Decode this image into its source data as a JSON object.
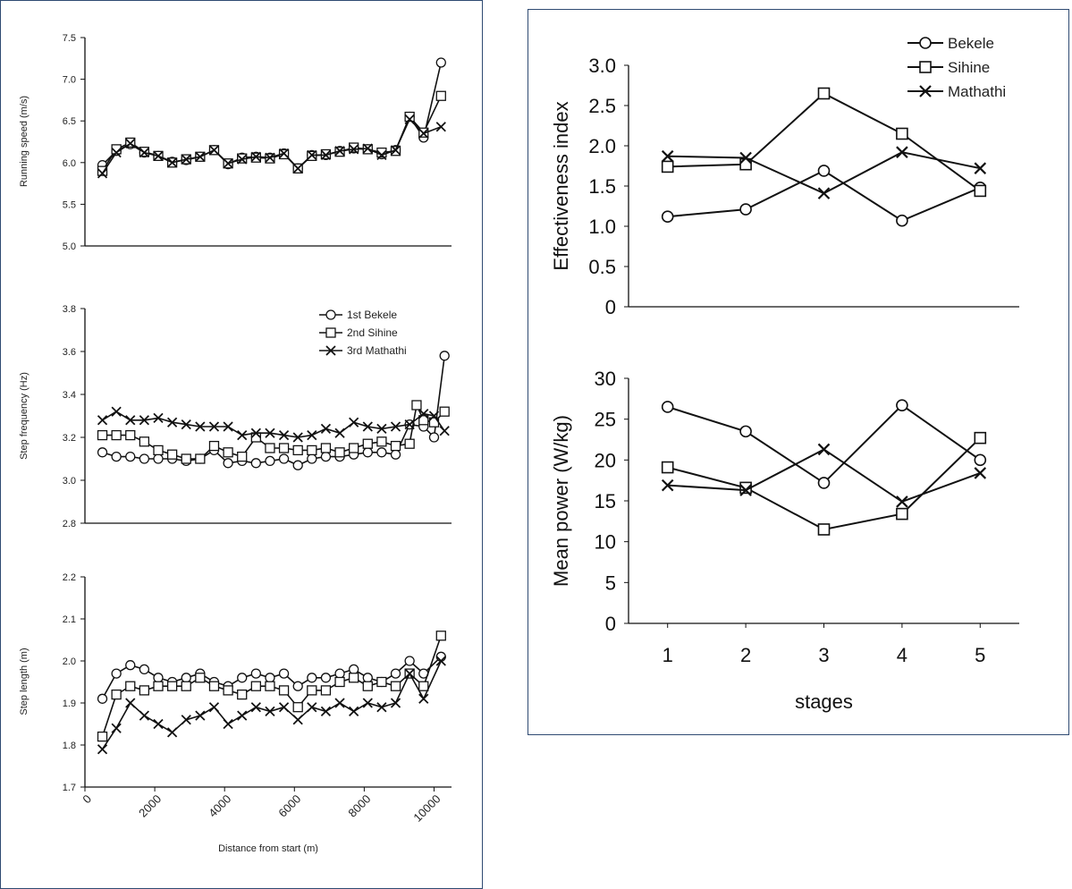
{
  "chart_data": [
    {
      "id": "speed",
      "type": "line",
      "ylabel": "Running speed (m/s)",
      "ylim": [
        5.0,
        7.5
      ],
      "yticks": [
        "5.0",
        "5.5",
        "6.0",
        "6.5",
        "7.0",
        "7.5"
      ],
      "xlim": [
        0,
        10500
      ],
      "series": [
        {
          "name": "1st Bekele",
          "marker": "circle",
          "x": [
            500,
            900,
            1300,
            1700,
            2100,
            2500,
            2900,
            3300,
            3700,
            4100,
            4500,
            4900,
            5300,
            5700,
            6100,
            6500,
            6900,
            7300,
            7700,
            8100,
            8500,
            8900,
            9300,
            9700,
            10200
          ],
          "y": [
            5.97,
            6.14,
            6.22,
            6.12,
            6.08,
            6.01,
            6.03,
            6.07,
            6.15,
            5.98,
            6.06,
            6.07,
            6.06,
            6.11,
            5.93,
            6.09,
            6.09,
            6.14,
            6.17,
            6.16,
            6.1,
            6.15,
            6.55,
            6.3,
            7.2
          ]
        },
        {
          "name": "2nd Sihine",
          "marker": "square",
          "x": [
            500,
            900,
            1300,
            1700,
            2100,
            2500,
            2900,
            3300,
            3700,
            4100,
            4500,
            4900,
            5300,
            5700,
            6100,
            6500,
            6900,
            7300,
            7700,
            8100,
            8500,
            8900,
            9300,
            9700,
            10200
          ],
          "y": [
            5.9,
            6.16,
            6.24,
            6.13,
            6.08,
            6.0,
            6.04,
            6.07,
            6.15,
            5.99,
            6.05,
            6.06,
            6.05,
            6.1,
            5.93,
            6.08,
            6.1,
            6.13,
            6.18,
            6.16,
            6.12,
            6.14,
            6.55,
            6.36,
            6.8
          ]
        },
        {
          "name": "3rd Mathathi",
          "marker": "x",
          "x": [
            500,
            900,
            1300,
            1700,
            2100,
            2500,
            2900,
            3300,
            3700,
            4100,
            4500,
            4900,
            5300,
            5700,
            6100,
            6500,
            6900,
            7300,
            7700,
            8100,
            8500,
            8900,
            9300,
            9700,
            10200
          ],
          "y": [
            5.87,
            6.12,
            6.23,
            6.12,
            6.08,
            6.0,
            6.04,
            6.07,
            6.15,
            5.99,
            6.04,
            6.07,
            6.06,
            6.11,
            5.93,
            6.09,
            6.09,
            6.14,
            6.16,
            6.17,
            6.09,
            6.15,
            6.52,
            6.35,
            6.43
          ]
        }
      ]
    },
    {
      "id": "frequency",
      "type": "line",
      "ylabel": "Step frequency (Hz)",
      "ylim": [
        2.8,
        3.8
      ],
      "yticks": [
        "2.8",
        "3.0",
        "3.2",
        "3.4",
        "3.6",
        "3.8"
      ],
      "xlim": [
        0,
        10500
      ],
      "legend": [
        "1st Bekele",
        "2nd Sihine",
        "3rd Mathathi"
      ],
      "legend_position": "top-right",
      "series": [
        {
          "name": "1st Bekele",
          "marker": "circle",
          "x": [
            500,
            900,
            1300,
            1700,
            2100,
            2500,
            2900,
            3300,
            3700,
            4100,
            4500,
            4900,
            5300,
            5700,
            6100,
            6500,
            6900,
            7300,
            7700,
            8100,
            8500,
            8900,
            9300,
            9700,
            10000,
            10300
          ],
          "y": [
            3.13,
            3.11,
            3.11,
            3.1,
            3.1,
            3.1,
            3.09,
            3.1,
            3.14,
            3.08,
            3.09,
            3.08,
            3.09,
            3.1,
            3.07,
            3.1,
            3.11,
            3.11,
            3.12,
            3.13,
            3.13,
            3.12,
            3.26,
            3.25,
            3.2,
            3.58
          ]
        },
        {
          "name": "2nd Sihine",
          "marker": "square",
          "x": [
            500,
            900,
            1300,
            1700,
            2100,
            2500,
            2900,
            3300,
            3700,
            4100,
            4500,
            4900,
            5300,
            5700,
            6100,
            6500,
            6900,
            7300,
            7700,
            8100,
            8500,
            8900,
            9300,
            9500,
            9700,
            10000,
            10300
          ],
          "y": [
            3.21,
            3.21,
            3.21,
            3.18,
            3.14,
            3.12,
            3.1,
            3.1,
            3.16,
            3.13,
            3.11,
            3.2,
            3.15,
            3.15,
            3.14,
            3.14,
            3.15,
            3.13,
            3.15,
            3.17,
            3.18,
            3.16,
            3.17,
            3.35,
            3.28,
            3.27,
            3.32
          ]
        },
        {
          "name": "3rd Mathathi",
          "marker": "x",
          "x": [
            500,
            900,
            1300,
            1700,
            2100,
            2500,
            2900,
            3300,
            3700,
            4100,
            4500,
            4900,
            5300,
            5700,
            6100,
            6500,
            6900,
            7300,
            7700,
            8100,
            8500,
            8900,
            9300,
            9700,
            10000,
            10300
          ],
          "y": [
            3.28,
            3.32,
            3.28,
            3.28,
            3.29,
            3.27,
            3.26,
            3.25,
            3.25,
            3.25,
            3.21,
            3.22,
            3.22,
            3.21,
            3.2,
            3.21,
            3.24,
            3.22,
            3.27,
            3.25,
            3.24,
            3.25,
            3.26,
            3.31,
            3.3,
            3.23
          ]
        }
      ]
    },
    {
      "id": "length",
      "type": "line",
      "ylabel": "Step length (m)",
      "xlabel": "Distance from start (m)",
      "ylim": [
        1.7,
        2.2
      ],
      "yticks": [
        "1.7",
        "1.8",
        "1.9",
        "2.0",
        "2.1",
        "2.2"
      ],
      "xlim": [
        0,
        10500
      ],
      "xticks": [
        "0",
        "2000",
        "4000",
        "6000",
        "8000",
        "10000"
      ],
      "series": [
        {
          "name": "1st Bekele",
          "marker": "circle",
          "x": [
            500,
            900,
            1300,
            1700,
            2100,
            2500,
            2900,
            3300,
            3700,
            4100,
            4500,
            4900,
            5300,
            5700,
            6100,
            6500,
            6900,
            7300,
            7700,
            8100,
            8500,
            8900,
            9300,
            9700,
            10200
          ],
          "y": [
            1.91,
            1.97,
            1.99,
            1.98,
            1.96,
            1.95,
            1.96,
            1.97,
            1.95,
            1.94,
            1.96,
            1.97,
            1.96,
            1.97,
            1.94,
            1.96,
            1.96,
            1.97,
            1.98,
            1.96,
            1.95,
            1.97,
            2.0,
            1.97,
            2.01
          ]
        },
        {
          "name": "2nd Sihine",
          "marker": "square",
          "x": [
            500,
            900,
            1300,
            1700,
            2100,
            2500,
            2900,
            3300,
            3700,
            4100,
            4500,
            4900,
            5300,
            5700,
            6100,
            6500,
            6900,
            7300,
            7700,
            8100,
            8500,
            8900,
            9300,
            9700,
            10200
          ],
          "y": [
            1.82,
            1.92,
            1.94,
            1.93,
            1.94,
            1.94,
            1.94,
            1.96,
            1.94,
            1.93,
            1.92,
            1.94,
            1.94,
            1.93,
            1.89,
            1.93,
            1.93,
            1.95,
            1.96,
            1.94,
            1.95,
            1.94,
            1.97,
            1.94,
            2.06
          ]
        },
        {
          "name": "3rd Mathathi",
          "marker": "x",
          "x": [
            500,
            900,
            1300,
            1700,
            2100,
            2500,
            2900,
            3300,
            3700,
            4100,
            4500,
            4900,
            5300,
            5700,
            6100,
            6500,
            6900,
            7300,
            7700,
            8100,
            8500,
            8900,
            9300,
            9700,
            10200
          ],
          "y": [
            1.79,
            1.84,
            1.9,
            1.87,
            1.85,
            1.83,
            1.86,
            1.87,
            1.89,
            1.85,
            1.87,
            1.89,
            1.88,
            1.89,
            1.86,
            1.89,
            1.88,
            1.9,
            1.88,
            1.9,
            1.89,
            1.9,
            1.97,
            1.91,
            2.0
          ]
        }
      ]
    },
    {
      "id": "effectiveness",
      "type": "line",
      "ylabel": "Effectiveness index",
      "ylim": [
        0,
        3.0
      ],
      "yticks": [
        "0",
        "0.5",
        "1.0",
        "1.5",
        "2.0",
        "2.5",
        "3.0"
      ],
      "xlim": [
        0.5,
        5.5
      ],
      "legend": [
        "Bekele",
        "Sihine",
        "Mathathi"
      ],
      "legend_position": "top-right",
      "series": [
        {
          "name": "Bekele",
          "marker": "circle",
          "x": [
            1,
            2,
            3,
            4,
            5
          ],
          "y": [
            1.12,
            1.21,
            1.69,
            1.07,
            1.48
          ]
        },
        {
          "name": "Sihine",
          "marker": "square",
          "x": [
            1,
            2,
            3,
            4,
            5
          ],
          "y": [
            1.74,
            1.77,
            2.65,
            2.15,
            1.44
          ]
        },
        {
          "name": "Mathathi",
          "marker": "x",
          "x": [
            1,
            2,
            3,
            4,
            5
          ],
          "y": [
            1.87,
            1.85,
            1.41,
            1.92,
            1.72
          ]
        }
      ]
    },
    {
      "id": "power",
      "type": "line",
      "ylabel": "Mean power (W/kg)",
      "xlabel": "stages",
      "ylim": [
        0,
        30
      ],
      "yticks": [
        "0",
        "5",
        "10",
        "15",
        "20",
        "25",
        "30"
      ],
      "xlim": [
        0.5,
        5.5
      ],
      "xticks": [
        "1",
        "2",
        "3",
        "4",
        "5"
      ],
      "series": [
        {
          "name": "Bekele",
          "marker": "circle",
          "x": [
            1,
            2,
            3,
            4,
            5
          ],
          "y": [
            26.5,
            23.5,
            17.2,
            26.7,
            20.0
          ]
        },
        {
          "name": "Sihine",
          "marker": "square",
          "x": [
            1,
            2,
            3,
            4,
            5
          ],
          "y": [
            19.1,
            16.6,
            11.5,
            13.4,
            22.7
          ]
        },
        {
          "name": "Mathathi",
          "marker": "x",
          "x": [
            1,
            2,
            3,
            4,
            5
          ],
          "y": [
            16.9,
            16.3,
            21.3,
            14.9,
            18.4
          ]
        }
      ]
    }
  ]
}
